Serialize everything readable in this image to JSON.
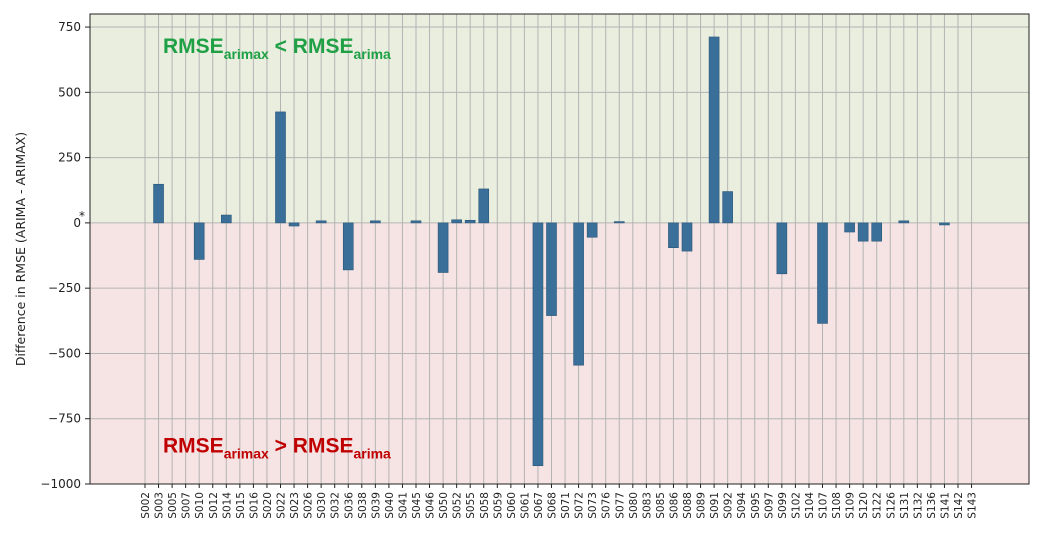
{
  "chart_data": {
    "type": "bar",
    "title": "",
    "xlabel": "",
    "ylabel": "Difference in RMSE (ARIMA - ARIMAX)",
    "ylim": [
      -1000,
      800
    ],
    "yticks": [
      750,
      500,
      250,
      0,
      -250,
      -500,
      -750,
      -1000
    ],
    "ytick_labels": [
      "750",
      "500",
      "250",
      "0",
      "−250",
      "−500",
      "−750",
      "−1000"
    ],
    "zero_marker": "*",
    "grid": true,
    "regions": {
      "positive_color": "#e9eedf",
      "negative_color": "#f6e3e3"
    },
    "bar_color": "#3a6f99",
    "annotations": {
      "top": {
        "main": "RMSE",
        "sub1": "arimax",
        "op": " < ",
        "main2": "RMSE",
        "sub2": "arima",
        "color": "#1fa045",
        "value_anchor": 650
      },
      "bottom": {
        "main": "RMSE",
        "sub1": "arimax",
        "op": " > ",
        "main2": "RMSE",
        "sub2": "arima",
        "color": "#c00000",
        "value_anchor": -880
      }
    },
    "categories": [
      "S002",
      "S003",
      "S005",
      "S007",
      "S010",
      "S012",
      "S014",
      "S015",
      "S016",
      "S020",
      "S022",
      "S023",
      "S026",
      "S030",
      "S032",
      "S036",
      "S038",
      "S039",
      "S040",
      "S041",
      "S045",
      "S046",
      "S050",
      "S052",
      "S055",
      "S058",
      "S059",
      "S060",
      "S061",
      "S067",
      "S068",
      "S071",
      "S072",
      "S073",
      "S076",
      "S077",
      "S080",
      "S083",
      "S085",
      "S086",
      "S088",
      "S089",
      "S091",
      "S092",
      "S094",
      "S095",
      "S097",
      "S099",
      "S102",
      "S104",
      "S107",
      "S108",
      "S109",
      "S120",
      "S122",
      "S126",
      "S131",
      "S132",
      "S136",
      "S141",
      "S142",
      "S143"
    ],
    "values": [
      0,
      148,
      0,
      0,
      -140,
      0,
      30,
      0,
      0,
      0,
      425,
      -12,
      0,
      8,
      0,
      -180,
      0,
      8,
      0,
      0,
      8,
      0,
      -190,
      12,
      10,
      130,
      0,
      0,
      0,
      -930,
      -355,
      0,
      -545,
      -55,
      0,
      5,
      0,
      0,
      0,
      -95,
      -108,
      0,
      712,
      120,
      0,
      0,
      0,
      -195,
      0,
      0,
      -385,
      0,
      -35,
      -70,
      -70,
      0,
      8,
      0,
      0,
      -8,
      0,
      0
    ]
  }
}
